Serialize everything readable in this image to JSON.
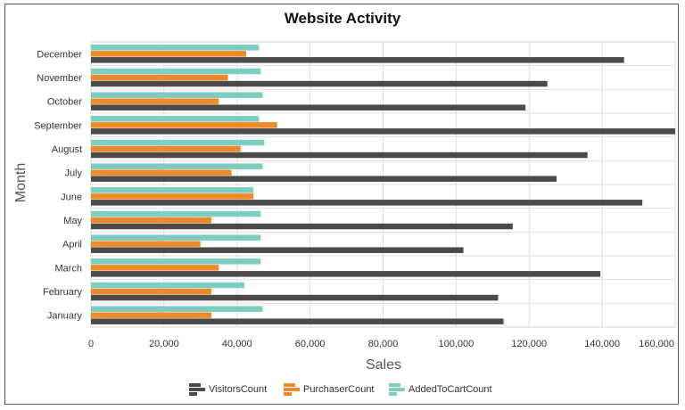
{
  "chart_data": {
    "type": "bar",
    "orientation": "horizontal",
    "title": "Website Activity",
    "xlabel": "Sales",
    "ylabel": "Month",
    "xlim": [
      0,
      160000
    ],
    "x_ticks": [
      "0",
      "20,000",
      "40,000",
      "60,000",
      "80,000",
      "100,000",
      "120,000",
      "140,000",
      "160,000"
    ],
    "categories": [
      "January",
      "February",
      "March",
      "April",
      "May",
      "June",
      "July",
      "August",
      "September",
      "October",
      "November",
      "December"
    ],
    "series": [
      {
        "name": "VisitorsCount",
        "color": "#4a4a4a",
        "values": [
          113000,
          111500,
          139500,
          102000,
          115500,
          151000,
          127500,
          136000,
          162000,
          119000,
          125000,
          146000
        ]
      },
      {
        "name": "PurchaserCount",
        "color": "#ef8a2a",
        "values": [
          33000,
          33000,
          35000,
          30000,
          33000,
          44500,
          38500,
          41000,
          51000,
          35000,
          37500,
          42500
        ]
      },
      {
        "name": "AddedToCartCount",
        "color": "#7dcdc0",
        "values": [
          47000,
          42000,
          46500,
          46500,
          46500,
          44500,
          47000,
          47500,
          46000,
          47000,
          46500,
          46000
        ]
      }
    ],
    "grid": true,
    "legend_position": "bottom"
  }
}
